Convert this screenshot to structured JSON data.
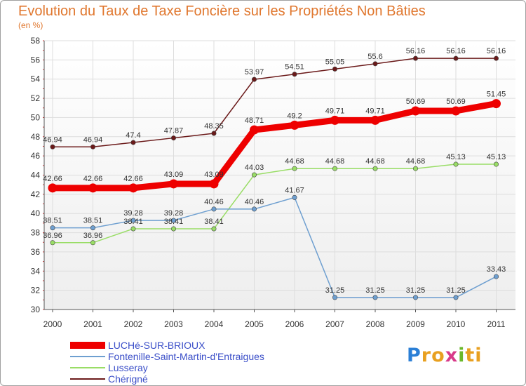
{
  "chart_data": {
    "type": "line",
    "title": "Evolution du Taux de Taxe Foncière sur les Propriétés Non Bâties",
    "subtitle": "(en %)",
    "categories": [
      "2000",
      "2001",
      "2002",
      "2003",
      "2004",
      "2005",
      "2006",
      "2007",
      "2008",
      "2009",
      "2010",
      "2011"
    ],
    "ylim": [
      30,
      58
    ],
    "yticks": [
      30,
      32,
      34,
      36,
      38,
      40,
      42,
      44,
      46,
      48,
      50,
      52,
      54,
      56,
      58
    ],
    "series": [
      {
        "name": "Chérigné",
        "color": "#6b1a1a",
        "values": [
          46.94,
          46.94,
          47.4,
          47.87,
          48.35,
          53.97,
          54.51,
          55.05,
          55.6,
          56.16,
          56.16,
          56.16
        ],
        "labels": [
          "46.94",
          "46.94",
          "47.4",
          "47.87",
          "48.35",
          "53.97",
          "54.51",
          "55.05",
          "55.6",
          "56.16",
          "56.16",
          "56.16"
        ]
      },
      {
        "name": "Lusseray",
        "color": "#99dd66",
        "values": [
          36.96,
          36.96,
          38.41,
          38.41,
          38.41,
          44.03,
          44.68,
          44.68,
          44.68,
          44.68,
          45.13,
          45.13
        ],
        "labels": [
          "36.96",
          "36.96",
          "38.41",
          "38.41",
          "38.41",
          "44.03",
          "44.68",
          "44.68",
          "44.68",
          "44.68",
          "45.13",
          "45.13"
        ]
      },
      {
        "name": "Fontenille-Saint-Martin-d'Entraigues",
        "color": "#6e9fd0",
        "values": [
          38.51,
          38.51,
          39.28,
          39.28,
          40.46,
          40.46,
          41.67,
          31.25,
          31.25,
          31.25,
          31.25,
          33.43
        ],
        "labels": [
          "38.51",
          "38.51",
          "39.28",
          "39.28",
          "40.46",
          "40.46",
          "41.67",
          "31.25",
          "31.25",
          "31.25",
          "31.25",
          "33.43"
        ]
      },
      {
        "name": "LUCHé-SUR-BRIOUX",
        "color": "#ee0000",
        "values": [
          42.66,
          42.66,
          42.66,
          43.09,
          43.09,
          48.71,
          49.2,
          49.71,
          49.71,
          50.69,
          50.69,
          51.45
        ],
        "labels": [
          "42.66",
          "42.66",
          "42.66",
          "43.09",
          "43.09",
          "48.71",
          "49.2",
          "49.71",
          "49.71",
          "50.69",
          "50.69",
          "51.45"
        ]
      }
    ],
    "legend": [
      "LUCHé-SUR-BRIOUX",
      "Fontenille-Saint-Martin-d'Entraigues",
      "Lusseray",
      "Chérigné"
    ]
  },
  "logo": {
    "letters": [
      "P",
      "r",
      "o",
      "x",
      "i",
      "t",
      "i"
    ],
    "colors": [
      "#2b7fd6",
      "#e8a020",
      "#e8a020",
      "#d83a8a",
      "#6ab82a",
      "#e8a020",
      "#e8a020"
    ]
  }
}
